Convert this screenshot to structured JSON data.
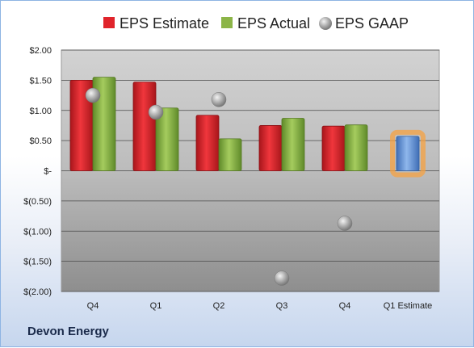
{
  "company": "Devon Energy",
  "chart_data": {
    "type": "bar",
    "categories": [
      "Q4",
      "Q1",
      "Q2",
      "Q3",
      "Q4",
      "Q1 Estimate"
    ],
    "series": [
      {
        "name": "EPS Estimate",
        "values": [
          1.5,
          1.47,
          0.92,
          0.75,
          0.74,
          null
        ],
        "color": "#e0242b",
        "kind": "bar"
      },
      {
        "name": "EPS Actual",
        "values": [
          1.55,
          1.04,
          0.53,
          0.87,
          0.76,
          null
        ],
        "color": "#8cb548",
        "kind": "bar"
      },
      {
        "name": "EPS GAAP",
        "values": [
          1.25,
          0.97,
          1.18,
          -1.78,
          -0.87,
          null
        ],
        "color": "#a8a8a8",
        "kind": "marker"
      }
    ],
    "estimate": {
      "category": "Q1 Estimate",
      "value": 0.57,
      "color": "#5b8fd6",
      "glow": "#f5a142"
    },
    "y_ticks": [
      {
        "value": 2.0,
        "label": "$2.00"
      },
      {
        "value": 1.5,
        "label": "$1.50"
      },
      {
        "value": 1.0,
        "label": "$1.00"
      },
      {
        "value": 0.5,
        "label": "$0.50"
      },
      {
        "value": 0.0,
        "label": "$-"
      },
      {
        "value": -0.5,
        "label": "$(0.50)"
      },
      {
        "value": -1.0,
        "label": "$(1.00)"
      },
      {
        "value": -1.5,
        "label": "$(1.50)"
      },
      {
        "value": -2.0,
        "label": "$(2.00)"
      }
    ],
    "ylim": [
      -2.0,
      2.0
    ],
    "grid": true,
    "legend_position": "top"
  }
}
